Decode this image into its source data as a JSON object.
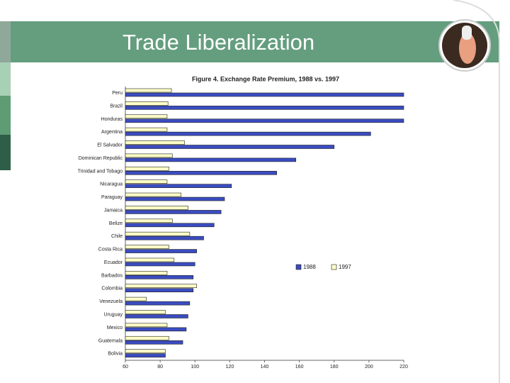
{
  "slide_title": "Trade Liberalization",
  "chart_data": {
    "type": "bar",
    "orientation": "horizontal",
    "title": "Figure 4.  Exchange Rate Premium, 1988 vs. 1997",
    "categories": [
      "Peru",
      "Brazil",
      "Honduras",
      "Argentina",
      "El Salvador",
      "Dominican Republic",
      "Trinidad and Tobago",
      "Nicaragua",
      "Paraguay",
      "Jamaica",
      "Belize",
      "Chile",
      "Costa Rica",
      "Ecuador",
      "Barbados",
      "Colombia",
      "Venezuela",
      "Uruguay",
      "Mexico",
      "Guatemala",
      "Bolivia"
    ],
    "series": [
      {
        "name": "1988",
        "color": "#3a4cc0",
        "values": [
          220,
          220,
          220,
          201,
          180,
          158,
          147,
          121,
          117,
          115,
          111,
          105,
          101,
          100,
          99,
          99,
          97,
          96,
          95,
          93,
          83
        ]
      },
      {
        "name": "1997",
        "color": "#ffffc8",
        "values": [
          86.5,
          84.5,
          84,
          84,
          94,
          87,
          85,
          84,
          92,
          96,
          87,
          97,
          85,
          88,
          84,
          101,
          72,
          83,
          84,
          85,
          83
        ]
      }
    ],
    "xlim": [
      60,
      220
    ],
    "xticks": [
      60,
      80,
      100,
      120,
      140,
      160,
      180,
      200,
      220
    ],
    "grid": false,
    "legend": "right"
  }
}
